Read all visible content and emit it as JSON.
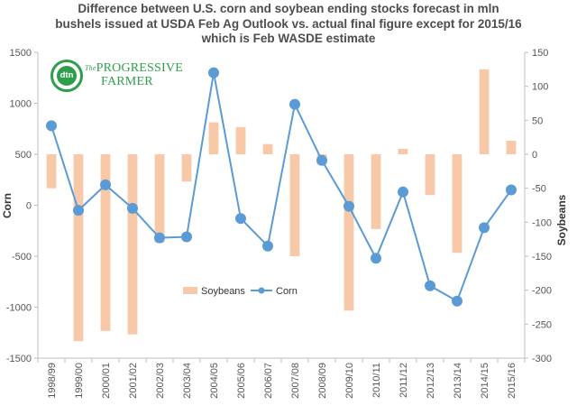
{
  "title_lines": [
    "Difference between U.S. corn and soybean ending stocks forecast in mln",
    "bushels issued at USDA Feb Ag Outlook vs. actual final figure except for 2015/16",
    "which is Feb WASDE  estimate"
  ],
  "logo": {
    "badge": "dtn",
    "the": "The",
    "line1": "PROGRESSIVE",
    "line2": "FARMER"
  },
  "chart_data": {
    "type": "bar+line",
    "title": "Difference between U.S. corn and soybean ending stocks forecast in mln bushels issued at USDA Feb Ag Outlook vs. actual final figure except for 2015/16 which is Feb WASDE  estimate",
    "categories": [
      "1998/99",
      "1999/00",
      "2000/01",
      "2001/02",
      "2002/03",
      "2003/04",
      "2004/05",
      "2005/06",
      "2006/07",
      "2007/08",
      "2008/09",
      "2009/10",
      "2010/11",
      "2011/12",
      "2012/13",
      "2013/14",
      "2014/15",
      "2015/16"
    ],
    "series": [
      {
        "name": "Soybeans",
        "type": "bar",
        "axis": "right",
        "color": "#f8c9a8",
        "values": [
          -50,
          -275,
          -260,
          -265,
          -130,
          -40,
          47,
          40,
          15,
          -150,
          -15,
          -230,
          -110,
          8,
          -60,
          -145,
          125,
          20
        ]
      },
      {
        "name": "Corn",
        "type": "line",
        "axis": "left",
        "color": "#5b9bd5",
        "values": [
          780,
          -50,
          200,
          -30,
          -320,
          -310,
          1300,
          -130,
          -400,
          990,
          440,
          -10,
          -520,
          130,
          -790,
          -940,
          -220,
          150
        ]
      }
    ],
    "ylabel_left": "Corn",
    "ylabel_right": "Soybeans",
    "ylim_left": [
      -1500,
      1500
    ],
    "yticks_left": [
      -1500,
      -1000,
      -500,
      0,
      500,
      1000,
      1500
    ],
    "ylim_right": [
      -300,
      150
    ],
    "yticks_right": [
      -300,
      -250,
      -200,
      -150,
      -100,
      -50,
      0,
      50,
      100,
      150
    ],
    "legend_position": "bottom-center",
    "grid": false
  }
}
